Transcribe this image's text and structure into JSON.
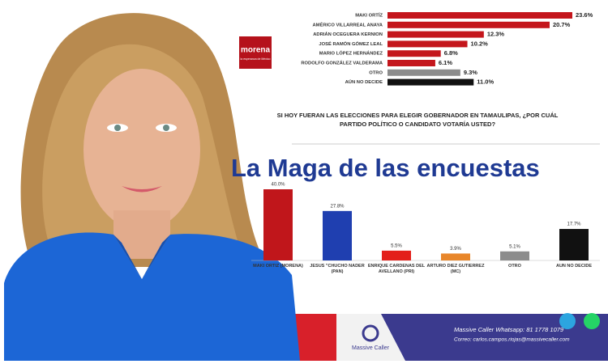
{
  "overlay_title": "La Maga de las encuestas",
  "logo": {
    "party": "morena",
    "tagline": "la esperanza de México"
  },
  "chart_data": [
    {
      "type": "hbar",
      "categories": [
        "MAKI ORTÍZ",
        "AMÉRICO VILLARREAL ANAYA",
        "ADRIÁN OCEGUERA KERNION",
        "JOSÉ RAMÓN GÓMEZ LEAL",
        "MARIO LÓPEZ HERNÁNDEZ",
        "RODOLFO GONZÁLEZ VALDERAMA",
        "OTRO",
        "AÚN NO DECIDE"
      ],
      "values": [
        23.6,
        20.7,
        12.3,
        10.2,
        6.8,
        6.1,
        9.3,
        11.0
      ],
      "value_labels": [
        "23.6%",
        "20.7%",
        "12.3%",
        "10.2%",
        "6.8%",
        "6.1%",
        "9.3%",
        "11.0%"
      ],
      "colors": [
        "#c4161c",
        "#c4161c",
        "#c4161c",
        "#c4161c",
        "#c4161c",
        "#c4161c",
        "#8c8c8c",
        "#111111"
      ]
    },
    {
      "type": "bar",
      "title": "SI HOY FUERAN LAS ELECCIONES PARA ELEGIR GOBERNADOR EN TAMAULIPAS, ¿POR CUÁL PARTIDO POLÍTICO O CANDIDATO VOTARÍA USTED?",
      "categories": [
        "MAKI ORTÍZ (MORENA)",
        "JESÚS \"CHUCHO NADER (PAN)",
        "ENRIQUE CÁRDENAS DEL AVELLANO (PRI)",
        "ARTURO DIEZ GUTIÉRREZ (MC)",
        "OTRO",
        "AÚN NO DECIDE"
      ],
      "values": [
        40.0,
        27.8,
        5.5,
        3.9,
        5.1,
        17.7
      ],
      "value_labels": [
        "40.0%",
        "27.8%",
        "5.5%",
        "3.9%",
        "5.1%",
        "17.7%"
      ],
      "colors": [
        "#c0161b",
        "#1f3fb0",
        "#e3201b",
        "#e8862a",
        "#8c8c8c",
        "#111111"
      ]
    }
  ],
  "footer": {
    "brand": "Massive Caller",
    "whatsapp": "Massive Caller Whatsapp: 81 1778 1079",
    "email": "Correo: carlos.campos.riojas@massivecaller.com"
  }
}
